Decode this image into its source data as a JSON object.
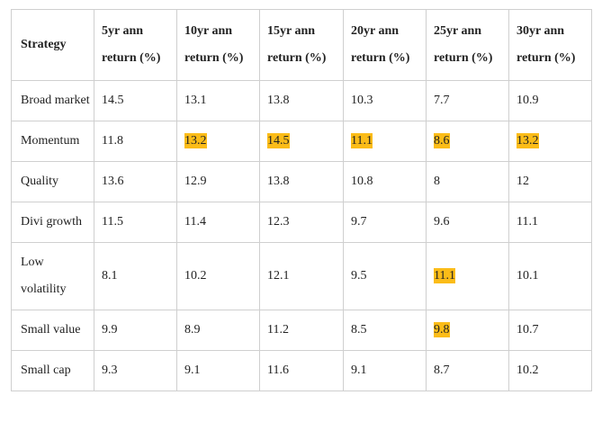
{
  "table": {
    "header": [
      "Strategy",
      "5yr ann return (%)",
      "10yr ann return (%)",
      "15yr ann return (%)",
      "20yr ann return (%)",
      "25yr ann return (%)",
      "30yr ann return (%)"
    ],
    "highlight_color": "#fbbc18",
    "rows": [
      [
        "Broad market",
        "14.5",
        "13.1",
        "13.8",
        "10.3",
        "7.7",
        "10.9"
      ],
      [
        "Momentum",
        "11.8",
        {
          "text": "13.2",
          "highlight": true
        },
        {
          "text": "14.5",
          "highlight": true
        },
        {
          "text": "11.1",
          "highlight": true
        },
        {
          "text": "8.6",
          "highlight": true
        },
        {
          "text": "13.2",
          "highlight": true
        }
      ],
      [
        "Quality",
        "13.6",
        "12.9",
        "13.8",
        "10.8",
        "8",
        "12"
      ],
      [
        "Divi growth",
        "11.5",
        "11.4",
        "12.3",
        "9.7",
        "9.6",
        "11.1"
      ],
      [
        "Low volatility",
        "8.1",
        "10.2",
        "12.1",
        "9.5",
        {
          "text": "11.1",
          "highlight": true
        },
        "10.1"
      ],
      [
        "Small value",
        "9.9",
        "8.9",
        "11.2",
        "8.5",
        {
          "text": "9.8",
          "highlight": true
        },
        "10.7"
      ],
      [
        "Small cap",
        "9.3",
        "9.1",
        "11.6",
        "9.1",
        "8.7",
        "10.2"
      ]
    ]
  }
}
